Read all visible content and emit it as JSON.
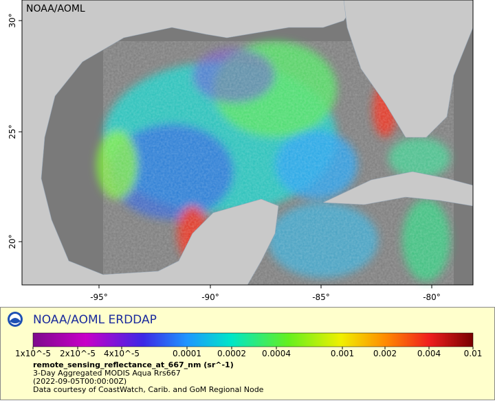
{
  "map": {
    "watermark": "NOAA/AOML",
    "lon_labels": [
      "-95°",
      "-90°",
      "-85°",
      "-80°"
    ],
    "lat_labels": [
      "20°",
      "25°",
      "30°"
    ]
  },
  "legend": {
    "title": "NOAA/AOML ERDDAP",
    "colorbar_labels": [
      "1x10^-5",
      "2x10^-5",
      "4x10^-5",
      "0.0001",
      "0.0002",
      "0.0004",
      "0.001",
      "0.002",
      "0.004",
      "0.01"
    ],
    "variable": "remote_sensing_reflectance_at_667_nm (sr^-1)",
    "lines": [
      "3-Day Aggregated MODIS Aqua Rrs667",
      "(2022-09-05T00:00:00Z)",
      "Data courtesy of CoastWatch, Carib. and GoM Regional Node"
    ]
  }
}
